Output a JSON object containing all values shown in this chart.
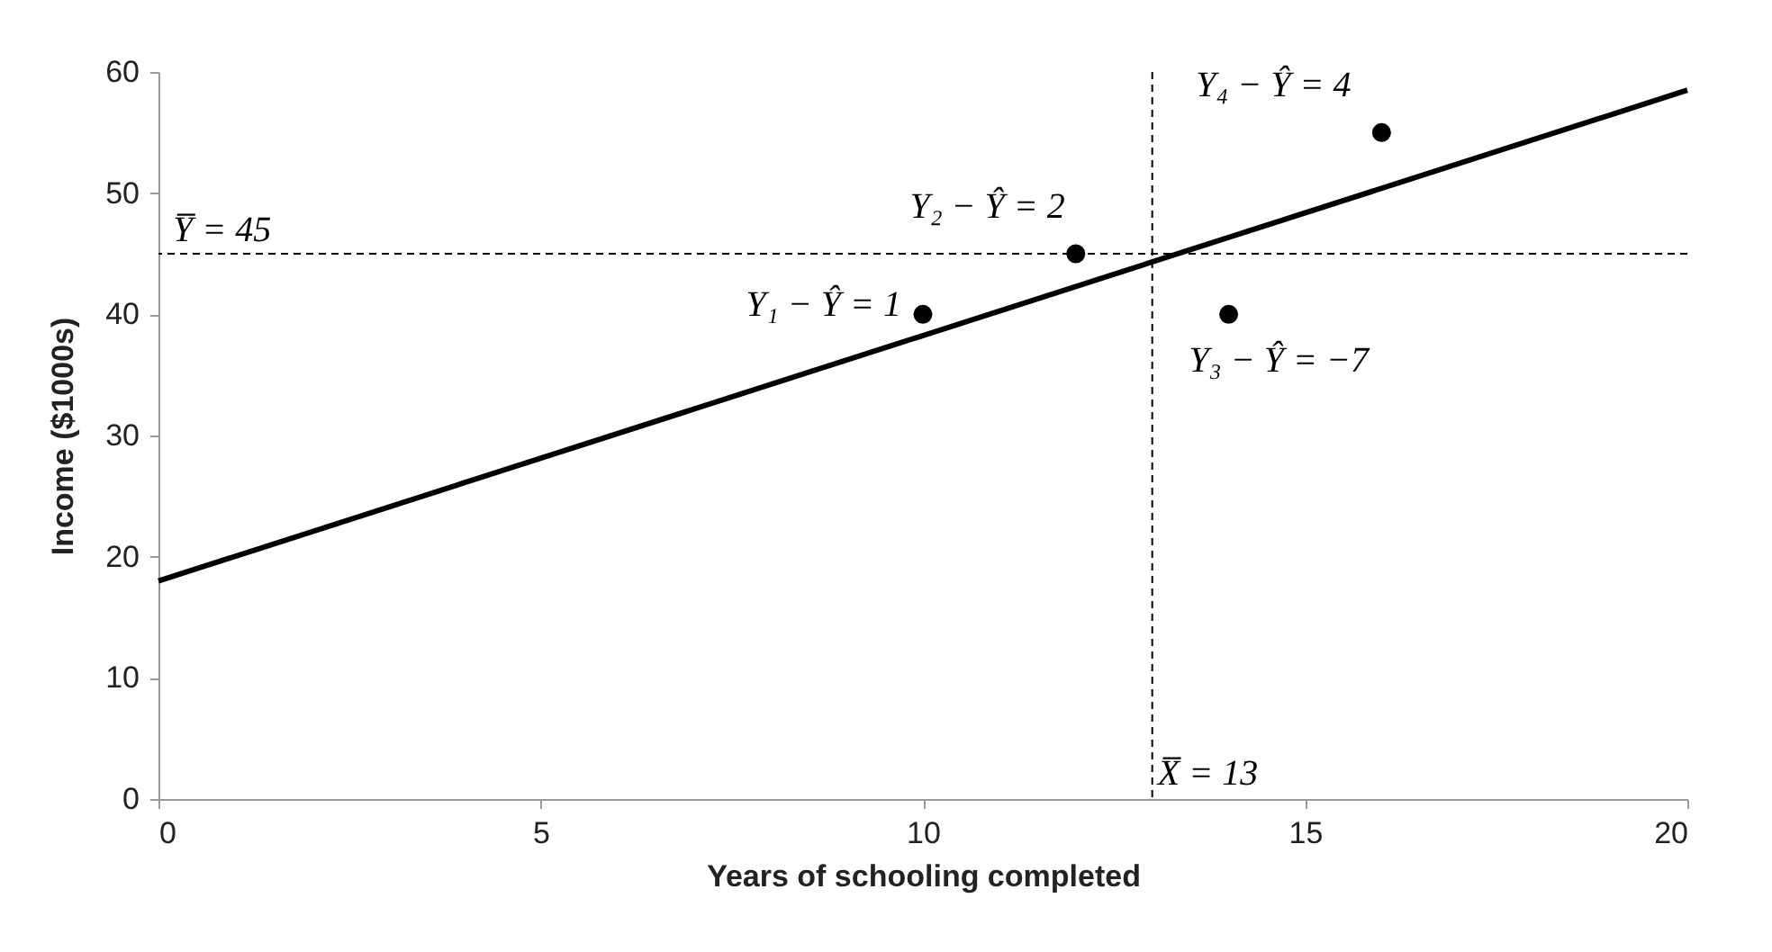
{
  "chart_data": {
    "type": "scatter",
    "xlabel": "Years of schooling completed",
    "ylabel": "Income ($1000s)",
    "xlim": [
      0,
      20
    ],
    "xticks": [
      0,
      5,
      10,
      15,
      20
    ],
    "ylim": [
      0,
      60
    ],
    "yticks": [
      0,
      10,
      20,
      30,
      40,
      50,
      60
    ],
    "series": [
      {
        "color": "#000000",
        "marker": "circle",
        "x": [
          10,
          12,
          14,
          16
        ],
        "values": [
          40,
          45,
          40,
          55
        ]
      },
      {
        "type": "line",
        "color": "#000000",
        "x": [
          0,
          20
        ],
        "values": [
          18,
          58.5
        ]
      }
    ],
    "ref_lines": [
      {
        "axis": "y",
        "value": 45,
        "label": "Y̅ = 45",
        "line_style": "dashed",
        "color": "#000000"
      },
      {
        "axis": "x",
        "value": 13,
        "label": "X̅ = 13",
        "line_style": "dashed",
        "color": "#000000"
      }
    ],
    "annotations": [
      {
        "text": "Y₁ − Ŷ = 1",
        "x": 10,
        "y": 40
      },
      {
        "text": "Y₂ − Ŷ = 2",
        "x": 12,
        "y": 45
      },
      {
        "text": "Y₃ − Ŷ = −7",
        "x": 14,
        "y": 40
      },
      {
        "text": "Y₄ − Ŷ = 4",
        "x": 16,
        "y": 55
      }
    ]
  }
}
